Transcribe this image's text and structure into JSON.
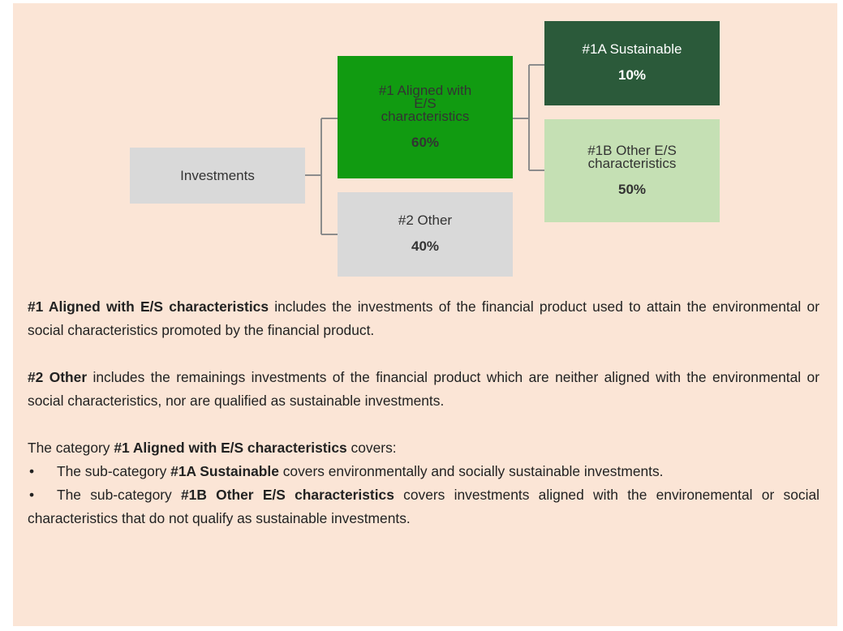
{
  "nodes": [
    {
      "label": "Investments"
    },
    {
      "label": "#1 Aligned with E/S characteristics",
      "share": "60%"
    },
    {
      "label": "#2 Other",
      "share": "40%"
    },
    {
      "label": "#1A Sustainable",
      "share": "10%"
    },
    {
      "label": "#1B Other E/S characteristics",
      "share": "50%"
    }
  ],
  "paragraphs": [
    {
      "runs": [
        {
          "text": "#1 Aligned with E/S characteristics",
          "bold": true
        },
        {
          "text": " includes the investments of the financial product used to attain the environmental or social characteristics promoted by the financial product."
        }
      ]
    },
    {
      "runs": [
        {
          "text": "#2 Other",
          "bold": true
        },
        {
          "text": " includes the remainings investments of the financial product which are neither aligned with the environmental or social characteristics, nor are qualified as sustainable investments."
        }
      ]
    },
    {
      "runs": [
        {
          "text": "The category "
        },
        {
          "text": "#1 Aligned with E/S characteristics",
          "bold": true
        },
        {
          "text": " covers:"
        }
      ]
    }
  ],
  "bullets": [
    {
      "runs": [
        {
          "text": "The sub-category "
        },
        {
          "text": "#1A Sustainable",
          "bold": true
        },
        {
          "text": " covers environmentally and socially sustainable investments."
        }
      ]
    },
    {
      "runs": [
        {
          "text": "The sub-category "
        },
        {
          "text": "#1B Other E/S characteristics",
          "bold": true
        },
        {
          "text": " covers investments aligned with the environemental or social characteristics that do not qualify as sustainable investments."
        }
      ]
    }
  ]
}
